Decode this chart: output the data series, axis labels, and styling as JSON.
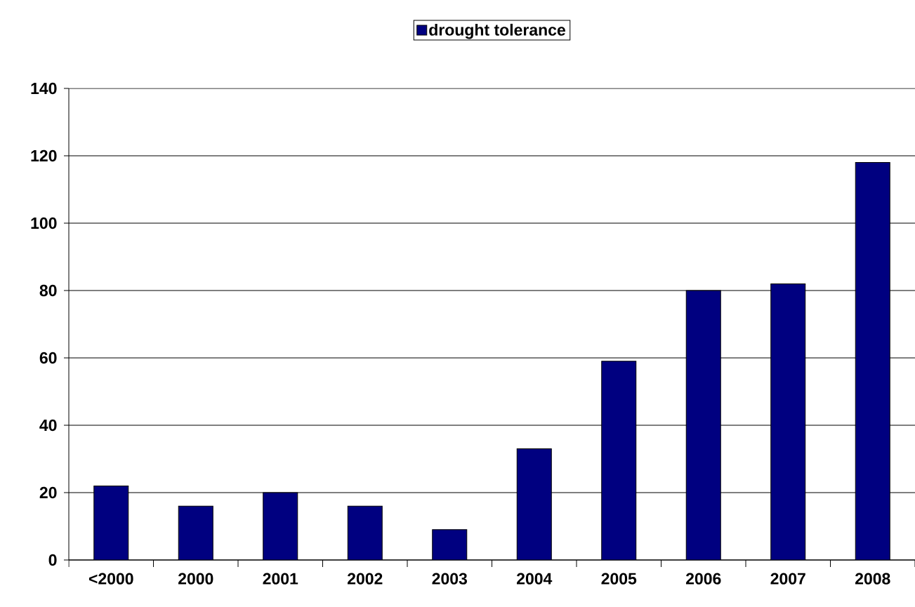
{
  "chart_data": {
    "type": "bar",
    "categories": [
      "<2000",
      "2000",
      "2001",
      "2002",
      "2003",
      "2004",
      "2005",
      "2006",
      "2007",
      "2008"
    ],
    "series": [
      {
        "name": "drought tolerance",
        "color": "#000080",
        "values": [
          22,
          16,
          20,
          16,
          9,
          33,
          59,
          80,
          82,
          118
        ]
      }
    ],
    "ylim": [
      0,
      140
    ],
    "yticks": [
      0,
      20,
      40,
      60,
      80,
      100,
      120,
      140
    ],
    "grid": "y",
    "legend": "top"
  }
}
